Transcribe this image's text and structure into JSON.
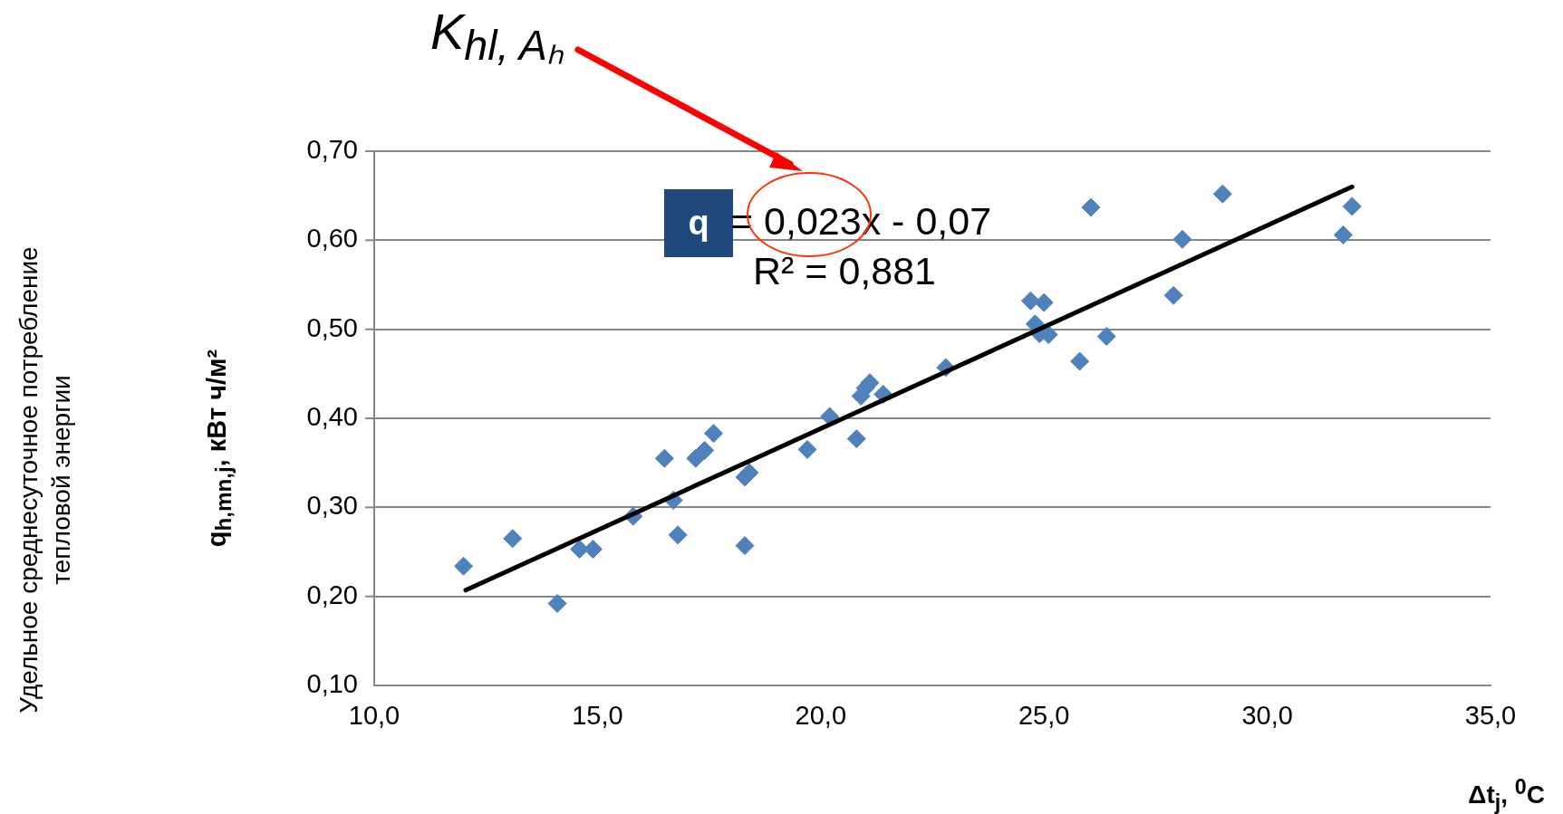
{
  "chart_data": {
    "type": "scatter",
    "xlabel": "Δt$_{j}$, $^{0}$C",
    "ylabel": "q$_{h,mn,j}$, кВт ч/м²",
    "annotations": [
      "K$_{hl, Aₕ}$",
      "q",
      "= 0,023x - 0,07",
      "R² = 0,881",
      "Удельное среднесуточное потребление тепловой энергии"
    ],
    "xlim": [
      10,
      35
    ],
    "xticks": [
      {
        "value": 10,
        "label": "10,0"
      },
      {
        "value": 15,
        "label": "15,0"
      },
      {
        "value": 20,
        "label": "20,0"
      },
      {
        "value": 25,
        "label": "25,0"
      },
      {
        "value": 30,
        "label": "30,0"
      },
      {
        "value": 35,
        "label": "35,0"
      }
    ],
    "ylim": [
      0.1,
      0.7
    ],
    "yticks": [
      {
        "value": 0.1,
        "label": "0,10"
      },
      {
        "value": 0.2,
        "label": "0,20"
      },
      {
        "value": 0.3,
        "label": "0,30"
      },
      {
        "value": 0.4,
        "label": "0,40"
      },
      {
        "value": 0.5,
        "label": "0,50"
      },
      {
        "value": 0.6,
        "label": "0,60"
      },
      {
        "value": 0.7,
        "label": "0,70"
      }
    ],
    "grid": "y",
    "series": [
      {
        "type": "scatter",
        "color": "#4f81bd",
        "marker": "diamond",
        "x": [
          12.0,
          13.1,
          14.1,
          14.6,
          14.9,
          15.8,
          16.5,
          16.7,
          16.8,
          17.2,
          17.4,
          17.6,
          18.3,
          18.4,
          18.3,
          19.7,
          20.2,
          20.8,
          20.9,
          21.0,
          21.1,
          21.4,
          22.8,
          24.7,
          24.8,
          24.9,
          25.0,
          25.1,
          25.8,
          26.05,
          26.4,
          27.9,
          28.1,
          29.0,
          31.7,
          31.9
        ],
        "values": [
          0.234,
          0.265,
          0.192,
          0.253,
          0.253,
          0.29,
          0.355,
          0.308,
          0.269,
          0.355,
          0.364,
          0.383,
          0.334,
          0.339,
          0.257,
          0.365,
          0.402,
          0.377,
          0.425,
          0.434,
          0.44,
          0.427,
          0.457,
          0.532,
          0.506,
          0.495,
          0.53,
          0.494,
          0.464,
          0.637,
          0.492,
          0.538,
          0.601,
          0.652,
          0.606,
          0.638
        ]
      },
      {
        "type": "line",
        "color": "#000000",
        "marker": "none",
        "line_style": "solid",
        "x": [
          12.05,
          31.9
        ],
        "values": [
          0.207,
          0.66
        ]
      }
    ]
  }
}
